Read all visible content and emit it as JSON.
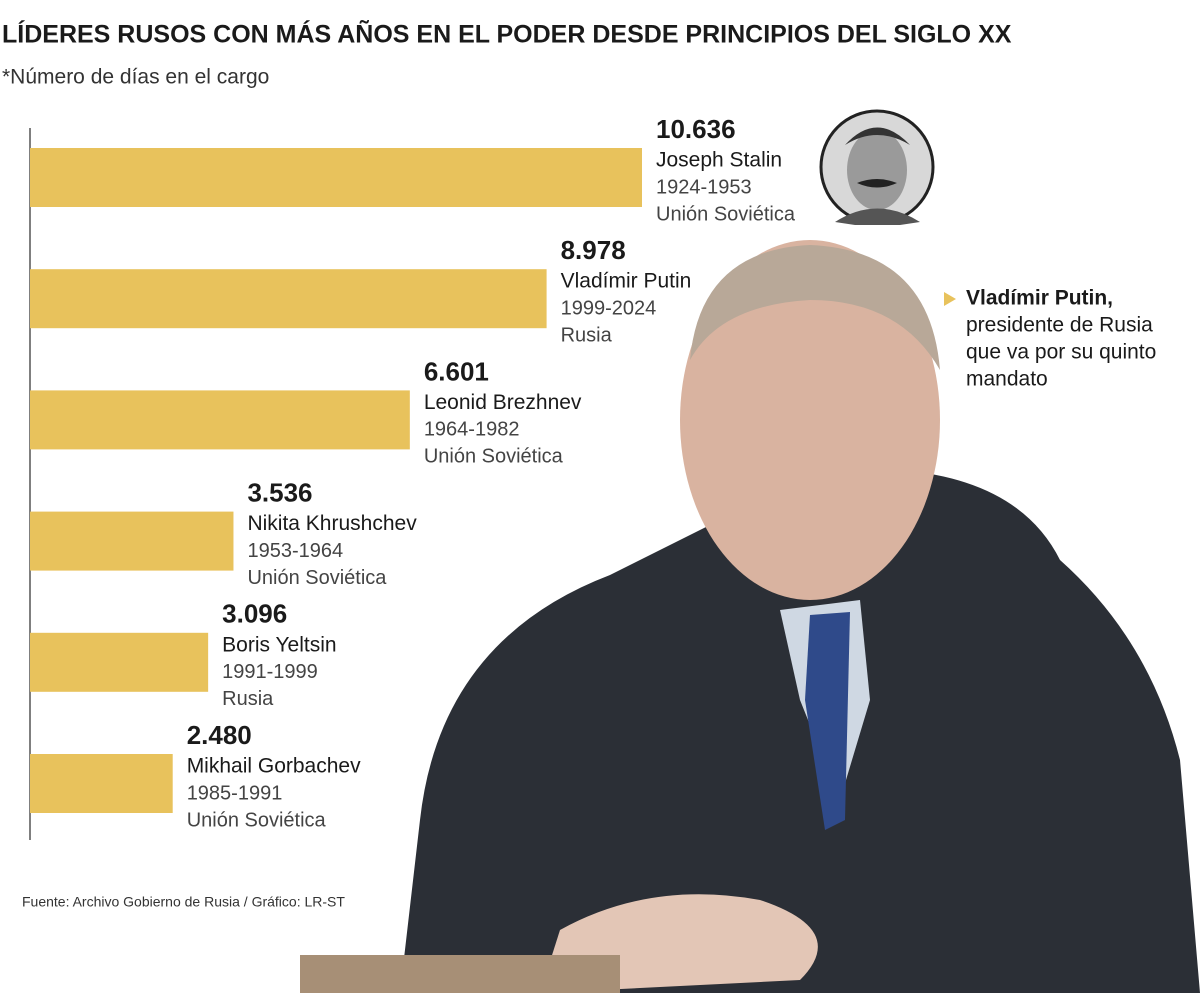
{
  "chart_data": {
    "type": "bar",
    "orientation": "horizontal",
    "title": "LÍDERES RUSOS CON MÁS AÑOS EN EL PODER DESDE PRINCIPIOS DEL SIGLO XX",
    "subtitle": "*Número de días en el cargo",
    "categories": [
      "Joseph Stalin",
      "Vladímir Putin",
      "Leonid Brezhnev",
      "Nikita Khrushchev",
      "Boris Yeltsin",
      "Mikhail Gorbachev"
    ],
    "periods": [
      "1924-1953",
      "1999-2024",
      "1964-1982",
      "1953-1964",
      "1991-1999",
      "1985-1991"
    ],
    "countries": [
      "Unión Soviética",
      "Rusia",
      "Unión Soviética",
      "Unión Soviética",
      "Rusia",
      "Unión Soviética"
    ],
    "values": [
      10636,
      8978,
      6601,
      3536,
      3096,
      2480
    ],
    "value_labels": [
      "10.636",
      "8.978",
      "6.601",
      "3.536",
      "3.096",
      "2.480"
    ],
    "color": "#e8c25c",
    "annotation": {
      "title": "Vladímir Putin,",
      "lines": [
        "presidente de Rusia",
        "que va por su quinto",
        "mandato"
      ]
    },
    "source": "Fuente: Archivo Gobierno de Rusia / Gráfico: LR-ST"
  }
}
